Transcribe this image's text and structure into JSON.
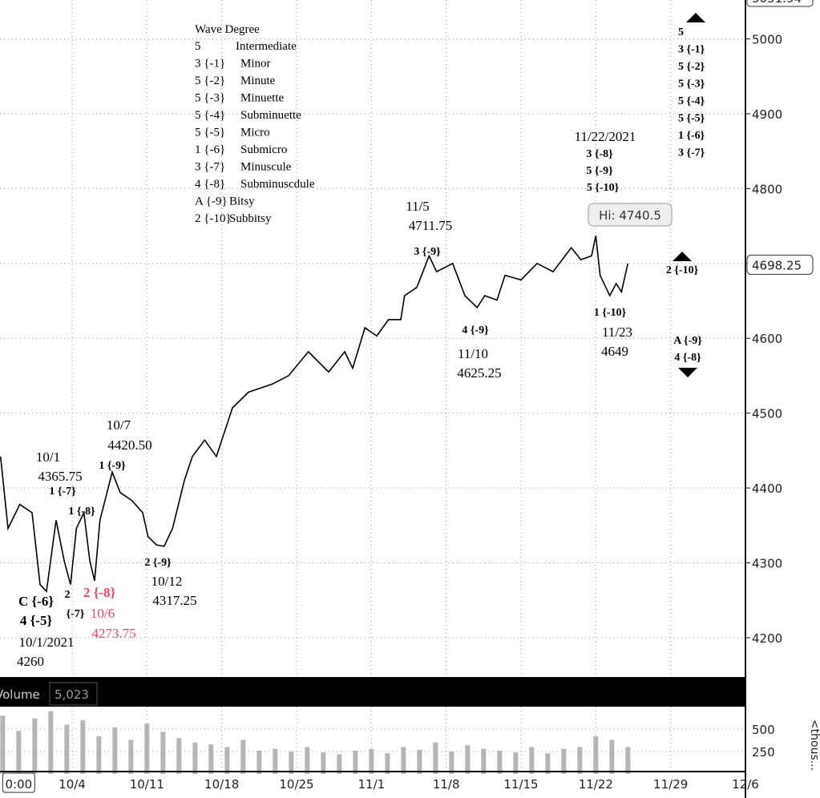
{
  "chart_data": {
    "type": "line",
    "ylim": [
      4147.45,
      5051.94
    ],
    "yticks": [
      4200,
      4300,
      4400,
      4500,
      4600,
      4700,
      4800,
      4900,
      5000
    ],
    "xlim": [
      -6.75,
      63
    ],
    "xticks": [
      {
        "value": -5,
        "label": "0:00"
      },
      {
        "value": 0,
        "label": "10/4"
      },
      {
        "value": 7,
        "label": "10/11"
      },
      {
        "value": 14,
        "label": "10/18"
      },
      {
        "value": 21,
        "label": "10/25"
      },
      {
        "value": 28,
        "label": "11/1"
      },
      {
        "value": 35,
        "label": "11/8"
      },
      {
        "value": 42,
        "label": "11/15"
      },
      {
        "value": 49,
        "label": "11/22"
      },
      {
        "value": 56,
        "label": "11/29"
      },
      {
        "value": 63,
        "label": "12/6"
      }
    ],
    "grid": true,
    "last_price": {
      "value": 4698.25,
      "label": "4698.25"
    },
    "high_label": "Hi: 4740.5",
    "series": [
      {
        "name": "Price",
        "color": "#000000",
        "x": [
          -6.7,
          -6,
          -4.9,
          -3.75,
          -3,
          -2.4,
          -1.5,
          -0.75,
          -0.15,
          0.4,
          1.1,
          1.65,
          2.1,
          2.6,
          3.75,
          4.5,
          5.6,
          6.6,
          7.1,
          7.9,
          8.6,
          9.4,
          10.5,
          11.25,
          12.4,
          13.5,
          15,
          16.5,
          18.75,
          20.25,
          22.1,
          24,
          25.5,
          26.25,
          27.4,
          28.5,
          29.6,
          30.75,
          31.1,
          32.25,
          33.4,
          34.1,
          35.6,
          36.75,
          37.9,
          38.6,
          39.75,
          40.5,
          42,
          43.5,
          45,
          46.7,
          47.6,
          48.6,
          49,
          49.4,
          50.3,
          50.9,
          51.4,
          52
        ],
        "values": [
          4442,
          4346,
          4378,
          4367,
          4271,
          4262,
          4357,
          4303,
          4271,
          4346,
          4367,
          4303,
          4276,
          4357,
          4421,
          4394,
          4383,
          4367,
          4335,
          4324,
          4322,
          4346,
          4410,
          4442,
          4464,
          4442,
          4507,
          4528,
          4539,
          4550,
          4582,
          4555,
          4582,
          4560,
          4614,
          4603,
          4625,
          4625,
          4657,
          4668,
          4710,
          4689,
          4700,
          4657,
          4641,
          4657,
          4651,
          4684,
          4678,
          4700,
          4689,
          4721,
          4705,
          4710,
          4737,
          4684,
          4657,
          4673,
          4662,
          4700
        ]
      }
    ],
    "volume": {
      "title": "Volume",
      "last": "5,023",
      "axis_label": "<thous...",
      "color": "#b5b5b5",
      "ylim": [
        0,
        750
      ],
      "yticks": [
        250,
        500
      ],
      "x": [
        -6.5,
        -5,
        -3.5,
        -2,
        -0.5,
        1,
        2.5,
        4,
        5.5,
        7,
        8.5,
        10,
        11.5,
        13,
        14.5,
        16,
        17.5,
        19,
        20.5,
        22,
        23.5,
        25,
        26.5,
        28,
        29.5,
        31,
        32.5,
        34,
        35.5,
        37,
        38.5,
        40,
        41.5,
        43,
        44.5,
        46,
        47.5,
        49,
        50.5,
        52
      ],
      "values": [
        650,
        480,
        620,
        700,
        550,
        600,
        420,
        520,
        380,
        560,
        470,
        400,
        350,
        330,
        300,
        380,
        260,
        280,
        250,
        300,
        240,
        220,
        260,
        280,
        230,
        300,
        270,
        350,
        250,
        320,
        280,
        260,
        240,
        300,
        230,
        280,
        300,
        420,
        380,
        300
      ]
    },
    "wave_degree": {
      "title": "Wave Degree",
      "rows": [
        [
          "5",
          "Intermediate"
        ],
        [
          "3 {-1}",
          "Minor"
        ],
        [
          "5 {-2}",
          "Minute"
        ],
        [
          "5 {-3}",
          "Minuette"
        ],
        [
          "5 {-4}",
          "Subminuette"
        ],
        [
          "5 {-5}",
          "Micro"
        ],
        [
          "1 {-6}",
          "Submicro"
        ],
        [
          "3 {-7}",
          "Minuscule"
        ],
        [
          "4 {-8}",
          "Subminuscdule"
        ],
        [
          "A {-9}",
          "Bitsy"
        ],
        [
          "2 {-10}",
          "Subbitsy"
        ]
      ]
    },
    "count_column": [
      "5",
      "3 {-1}",
      "5 {-2}",
      "5 {-3}",
      "5 {-4}",
      "5 {-5}",
      "1 {-6}",
      "3 {-7}"
    ],
    "annotations": [
      "10/1",
      "4365.75",
      "1 {-7}",
      "1 {-8}",
      "10/7",
      "4420.50",
      "1 {-9}",
      "2 {-9}",
      "10/12",
      "4317.25",
      "C {-6}",
      "2",
      "{-7}",
      "4 {-5}",
      "2 {-8}",
      "10/6",
      "4273.75",
      "10/1/2021",
      "4260",
      "11/5",
      "4711.75",
      "3 {-9}",
      "4 {-9}",
      "11/10",
      "4625.25",
      "1 {-10}",
      "11/23",
      "4649",
      "11/22/2021",
      "3 {-8}",
      "5 {-9}",
      "5 {-10}",
      "2 {-10}",
      "A {-9}",
      "4 {-8}"
    ]
  }
}
